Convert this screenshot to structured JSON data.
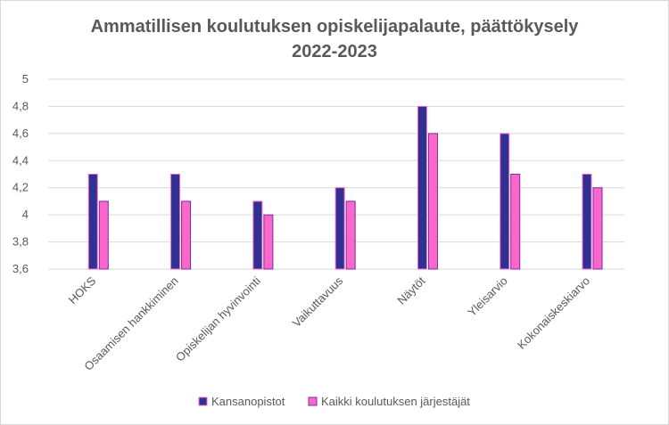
{
  "chart_data": {
    "type": "bar",
    "title_lines": [
      "Ammatillisen koulutuksen opiskelijapalaute, päättökysely",
      "2022-2023"
    ],
    "categories": [
      "HOKS",
      "Osaamisen hankkiminen",
      "Opiskelijan hyvinvointi",
      "Vaikuttavuus",
      "Näytöt",
      "Yleisarvio",
      "Kokonaiskeskiarvo"
    ],
    "series": [
      {
        "name": "Kansanopistot",
        "values": [
          4.3,
          4.3,
          4.1,
          4.2,
          4.8,
          4.6,
          4.3
        ],
        "color": "#2e3192",
        "stroke": "#ff66cc"
      },
      {
        "name": "Kaikki koulutuksen järjestäjät",
        "values": [
          4.1,
          4.1,
          4.0,
          4.1,
          4.6,
          4.3,
          4.2
        ],
        "color": "#ff66cc",
        "stroke": "#7030a0"
      }
    ],
    "ylim": [
      3.6,
      5
    ],
    "yticks": [
      "3,6",
      "3,8",
      "4",
      "4,2",
      "4,4",
      "4,6",
      "4,8",
      "5"
    ],
    "grid": true,
    "legend_position": "bottom"
  }
}
